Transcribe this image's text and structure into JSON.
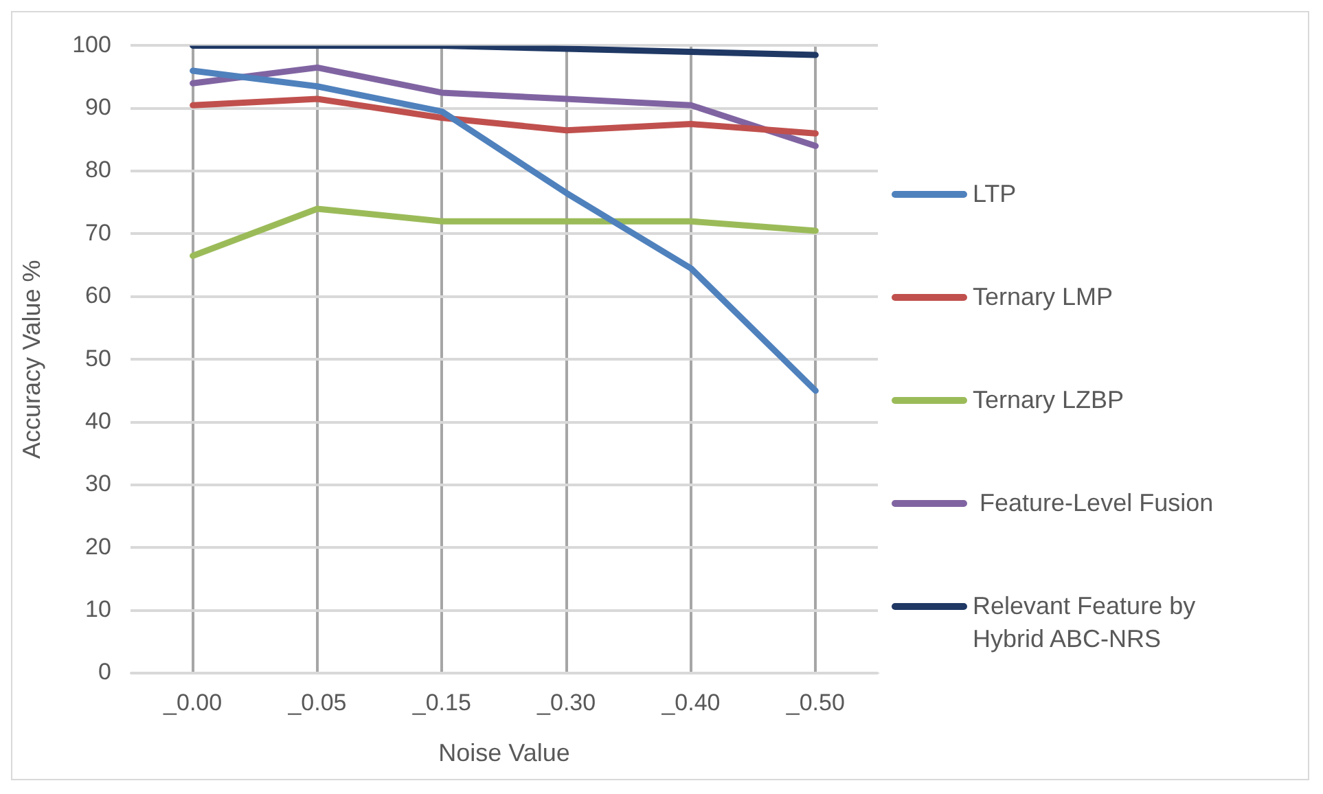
{
  "chart_data": {
    "type": "line",
    "xlabel": "Noise Value",
    "ylabel": "Accuracy Value %",
    "categories": [
      "_0.00",
      "_0.05",
      "_0.15",
      "_0.30",
      "_0.40",
      "_0.50"
    ],
    "series": [
      {
        "name": "LTP",
        "color": "#4f81bd",
        "values": [
          96,
          93.5,
          89.5,
          76.5,
          64.5,
          45
        ]
      },
      {
        "name": "Ternary LMP",
        "color": "#c0504d",
        "values": [
          90.5,
          91.5,
          88.5,
          86.5,
          87.5,
          86
        ]
      },
      {
        "name": "Ternary LZBP",
        "color": "#9bbb59",
        "values": [
          66.5,
          74,
          72,
          72,
          72,
          70.5
        ]
      },
      {
        "name": " Feature-Level Fusion",
        "color": "#8064a2",
        "values": [
          94,
          96.5,
          92.5,
          91.5,
          90.5,
          84
        ]
      },
      {
        "name": "Relevant Feature by Hybrid ABC-NRS",
        "color": "#1f3864",
        "values": [
          100,
          100,
          100,
          99.5,
          99,
          98.5
        ]
      }
    ],
    "ylim": [
      0,
      100
    ],
    "yticks": [
      0,
      10,
      20,
      30,
      40,
      50,
      60,
      70,
      80,
      90,
      100
    ],
    "grid": true,
    "legend": "right",
    "marker": "none",
    "line_style": "solid"
  }
}
